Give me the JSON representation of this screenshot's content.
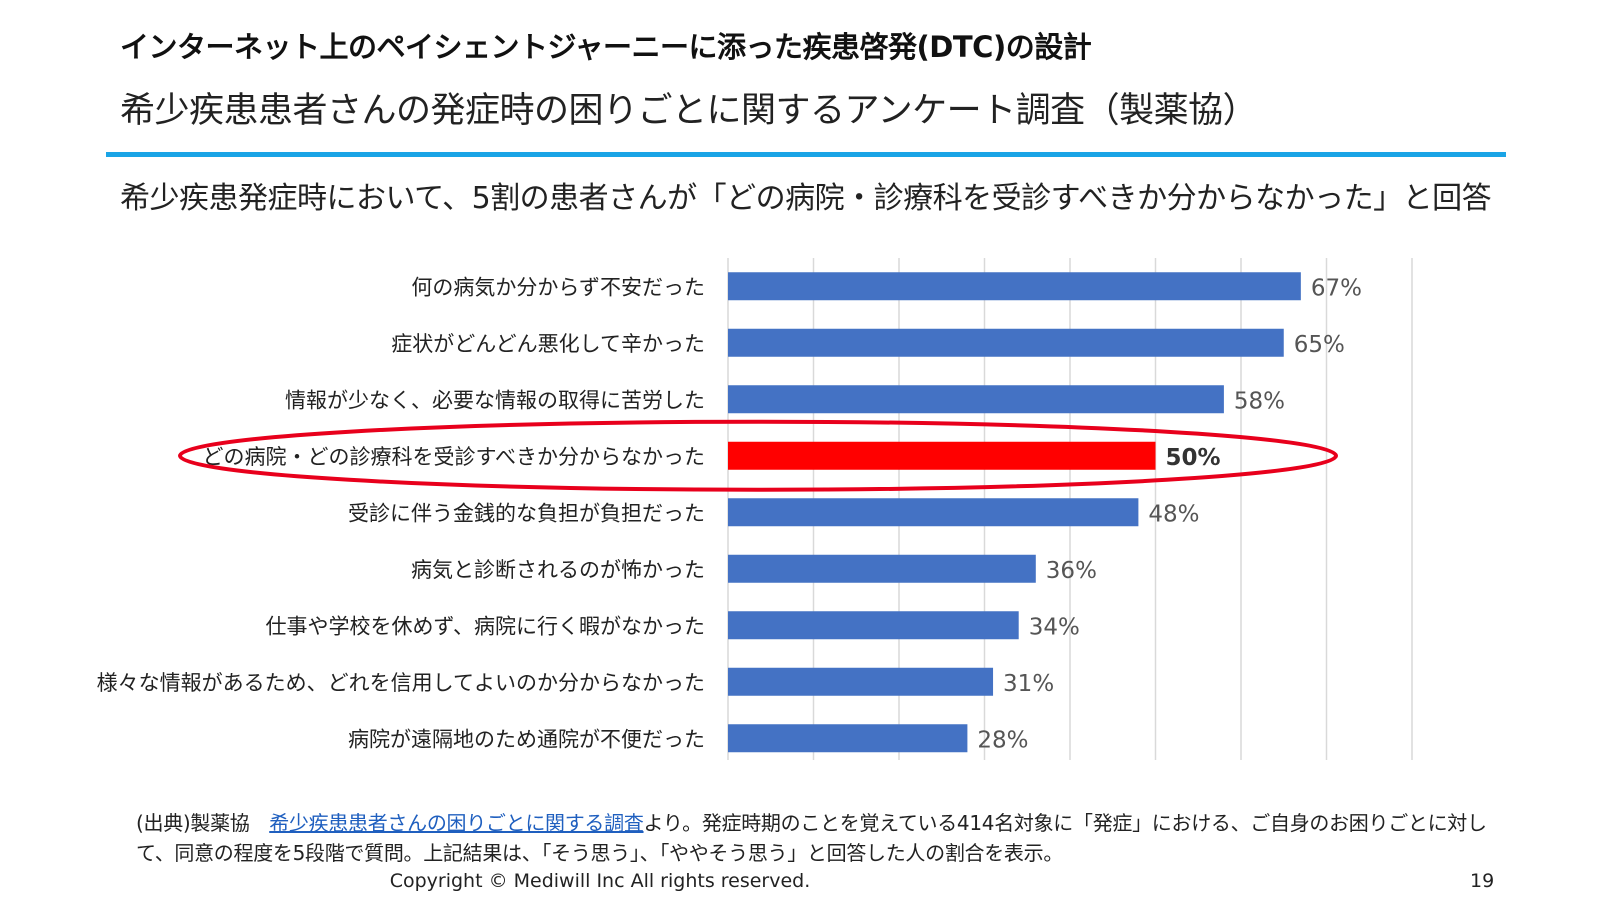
{
  "header": {
    "title": "インターネット上のペイシェントジャーニーに添った疾患啓発(DTC)の設計",
    "subtitle": "希少疾患患者さんの発症時の困りごとに関するアンケート調査（製薬協）"
  },
  "headline": "希少疾患発症時において、5割の患者さんが「どの病院・診療科を受診すべきか分からなかった」と回答",
  "chart_data": {
    "type": "bar",
    "orientation": "horizontal",
    "categories": [
      "何の病気か分からず不安だった",
      "症状がどんどん悪化して辛かった",
      "情報が少なく、必要な情報の取得に苦労した",
      "どの病院・どの診療科を受診すべきか分からなかった",
      "受診に伴う金銭的な負担が負担だった",
      "病気と診断されるのが怖かった",
      "仕事や学校を休めず、病院に行く暇がなかった",
      "様々な情報があるため、どれを信用してよいのか分からなかった",
      "病院が遠隔地のため通院が不便だった"
    ],
    "values": [
      67,
      65,
      58,
      50,
      48,
      36,
      34,
      31,
      28
    ],
    "value_labels": [
      "67%",
      "65%",
      "58%",
      "50%",
      "48%",
      "36%",
      "34%",
      "31%",
      "28%"
    ],
    "highlight_index": 3,
    "xlim": [
      0,
      80
    ],
    "grid": true,
    "colors": {
      "bar": "#4472c4",
      "highlight": "#ff0000",
      "ellipse": "#e8001c",
      "grid": "#d9d9d9"
    }
  },
  "footer": {
    "source_prefix": "(出典)製薬協　",
    "source_link": "希少疾患患者さんの困りごとに関する調査",
    "source_suffix": "より。発症時期のことを覚えている414名対象に「発症」における、ご自身のお困りごとに対して、同意の程度を5段階で質問。上記結果は、「そう思う」、「ややそう思う」と回答した人の割合を表示。",
    "copyright": "Copyright © Mediwill Inc All rights reserved.",
    "page_number": "19"
  }
}
